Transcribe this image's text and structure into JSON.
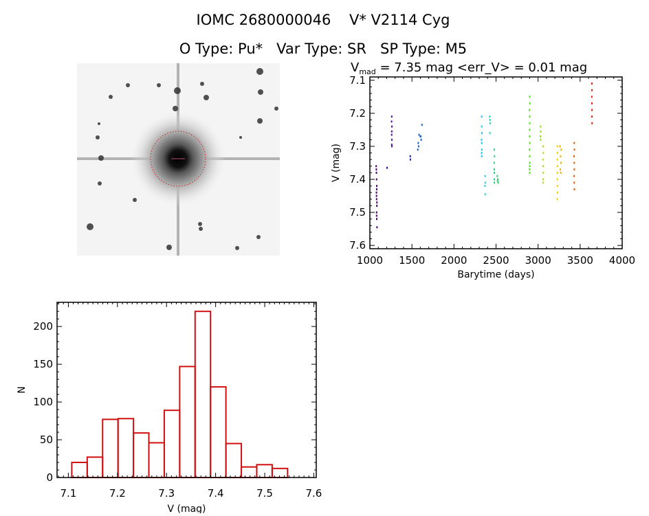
{
  "header": {
    "title": "IOMC 2680000046    V* V2114 Cyg",
    "subtitle": "O Type: Pu*   Var Type: SR   SP Type: M5"
  },
  "chart_data": [
    {
      "type": "scatter",
      "title_prefix": "V",
      "title_sub": "mad",
      "title_rest": " = 7.35 mag <err_V> = 0.01 mag",
      "xlabel": "Barytime (days)",
      "ylabel": "V (mag)",
      "xlim": [
        1000,
        4000
      ],
      "ylim": [
        7.09,
        7.61
      ],
      "y_inverted": true,
      "xticks": [
        1000,
        1500,
        2000,
        2500,
        3000,
        3500,
        4000
      ],
      "yticks": [
        "7.1",
        "7.2",
        "7.3",
        "7.4",
        "7.5",
        "7.6"
      ],
      "series": [
        {
          "color": "#4b0070",
          "x": [
            1075,
            1078,
            1080,
            1082,
            1078,
            1080,
            1083,
            1080,
            1082,
            1085,
            1079,
            1081,
            1077,
            1084,
            1080
          ],
          "y": [
            7.36,
            7.38,
            7.4,
            7.42,
            7.44,
            7.46,
            7.48,
            7.5,
            7.52,
            7.545,
            7.45,
            7.43,
            7.37,
            7.47,
            7.51
          ]
        },
        {
          "color": "#3a0090",
          "x": [
            1205
          ],
          "y": [
            7.365
          ]
        },
        {
          "color": "#4a10b0",
          "x": [
            1260,
            1258,
            1262,
            1260,
            1259,
            1261,
            1260,
            1262
          ],
          "y": [
            7.21,
            7.225,
            7.24,
            7.255,
            7.265,
            7.28,
            7.295,
            7.3
          ]
        },
        {
          "color": "#2020a0",
          "x": [
            1480,
            1482
          ],
          "y": [
            7.33,
            7.34
          ]
        },
        {
          "color": "#2060c0",
          "x": [
            1570,
            1580,
            1585,
            1600,
            1610,
            1620,
            1575,
            1605
          ],
          "y": [
            7.31,
            7.3,
            7.265,
            7.27,
            7.28,
            7.235,
            7.29,
            7.27
          ]
        },
        {
          "color": "#20c0e8",
          "x": [
            2330,
            2330,
            2332,
            2328,
            2330,
            2331,
            2329,
            2330
          ],
          "y": [
            7.21,
            7.24,
            7.26,
            7.28,
            7.29,
            7.31,
            7.32,
            7.33
          ]
        },
        {
          "color": "#30d0d0",
          "x": [
            2370,
            2372,
            2368,
            2371
          ],
          "y": [
            7.39,
            7.41,
            7.42,
            7.445
          ]
        },
        {
          "color": "#30d0b0",
          "x": [
            2425,
            2428,
            2430,
            2427
          ],
          "y": [
            7.21,
            7.22,
            7.23,
            7.26
          ]
        },
        {
          "color": "#30d080",
          "x": [
            2480,
            2482,
            2478,
            2480,
            2481,
            2479,
            2480
          ],
          "y": [
            7.31,
            7.33,
            7.35,
            7.37,
            7.38,
            7.4,
            7.41
          ]
        },
        {
          "color": "#30d070",
          "x": [
            2515,
            2520,
            2525,
            2518
          ],
          "y": [
            7.39,
            7.4,
            7.41,
            7.405
          ]
        },
        {
          "color": "#50e020",
          "x": [
            2900,
            2902,
            2898,
            2900,
            2901,
            2899,
            2900,
            2902,
            2898,
            2900,
            2901,
            2900,
            2899,
            2900
          ],
          "y": [
            7.15,
            7.17,
            7.19,
            7.21,
            7.23,
            7.25,
            7.27,
            7.29,
            7.31,
            7.33,
            7.35,
            7.36,
            7.37,
            7.38
          ]
        },
        {
          "color": "#90e020",
          "x": [
            3030,
            3032,
            3028,
            3030
          ],
          "y": [
            7.24,
            7.255,
            7.27,
            7.28
          ]
        },
        {
          "color": "#b0e020",
          "x": [
            3060,
            3062,
            3058,
            3060,
            3061,
            3060,
            3059
          ],
          "y": [
            7.3,
            7.32,
            7.34,
            7.36,
            7.38,
            7.4,
            7.41
          ]
        },
        {
          "color": "#f0d000",
          "x": [
            3230,
            3232,
            3228,
            3230,
            3231,
            3229,
            3230,
            3232,
            3228
          ],
          "y": [
            7.3,
            7.32,
            7.34,
            7.36,
            7.38,
            7.4,
            7.42,
            7.44,
            7.46
          ]
        },
        {
          "color": "#f0b000",
          "x": [
            3260,
            3275,
            3268,
            3272,
            3265,
            3270
          ],
          "y": [
            7.3,
            7.31,
            7.33,
            7.35,
            7.37,
            7.38
          ]
        },
        {
          "color": "#e06010",
          "x": [
            3430,
            3432,
            3428,
            3430,
            3431,
            3429,
            3430,
            3432
          ],
          "y": [
            7.29,
            7.31,
            7.33,
            7.35,
            7.37,
            7.39,
            7.41,
            7.43
          ]
        },
        {
          "color": "#e02010",
          "x": [
            3640,
            3641,
            3639,
            3640,
            3641,
            3640,
            3642
          ],
          "y": [
            7.11,
            7.13,
            7.15,
            7.17,
            7.19,
            7.21,
            7.23
          ]
        }
      ]
    },
    {
      "type": "bar",
      "xlabel": "V (mag)",
      "ylabel": "N",
      "xlim": [
        7.077,
        7.605
      ],
      "ylim": [
        0,
        232
      ],
      "xticks": [
        "7.1",
        "7.2",
        "7.3",
        "7.4",
        "7.5",
        "7.6"
      ],
      "yticks": [
        "0",
        "50",
        "100",
        "150",
        "200"
      ],
      "bin_start": 7.107,
      "bin_width": 0.0314,
      "values": [
        20,
        27,
        77,
        78,
        59,
        46,
        89,
        147,
        220,
        120,
        45,
        14,
        17,
        12
      ],
      "color": "#d01010"
    }
  ]
}
